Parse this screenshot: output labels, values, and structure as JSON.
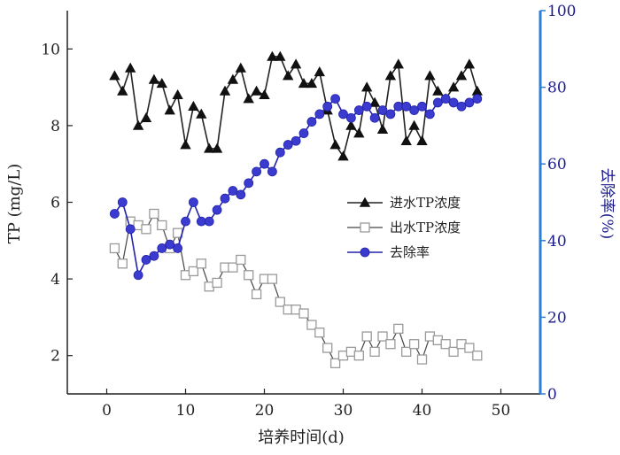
{
  "chart_data": {
    "type": "line",
    "xlabel": "培养时间(d)",
    "ylabel_left": "TP (mg/L)",
    "ylabel_right": "去除率(%)",
    "xlim": [
      -5,
      55
    ],
    "ylim_left": [
      1,
      11
    ],
    "ylim_right": [
      0,
      100
    ],
    "x_ticks": [
      0,
      10,
      20,
      30,
      40,
      50
    ],
    "y_ticks_left": [
      2,
      4,
      6,
      8,
      10
    ],
    "y_ticks_right": [
      0,
      20,
      40,
      60,
      80,
      100
    ],
    "grid": false,
    "legend_position": "center-right",
    "colors": {
      "axis_left": "#222222",
      "axis_right": "#2b7fd6",
      "influent": "#222222",
      "influent_marker": "#111111",
      "effluent": "#444444",
      "effluent_marker": "#9a9a9a",
      "removal": "#2222aa",
      "removal_marker": "#3b3bd0"
    },
    "x": [
      1,
      2,
      3,
      4,
      5,
      6,
      7,
      8,
      9,
      10,
      11,
      12,
      13,
      14,
      15,
      16,
      17,
      18,
      19,
      20,
      21,
      22,
      23,
      24,
      25,
      26,
      27,
      28,
      29,
      30,
      31,
      32,
      33,
      34,
      35,
      36,
      37,
      38,
      39,
      40,
      41,
      42,
      43,
      44,
      45,
      46,
      47
    ],
    "series": [
      {
        "name": "进水TP浓度",
        "axis": "left",
        "marker": "triangle",
        "values": [
          9.3,
          8.9,
          9.5,
          8.0,
          8.2,
          9.2,
          9.1,
          8.4,
          8.8,
          7.5,
          8.5,
          8.3,
          7.4,
          7.4,
          8.9,
          9.2,
          9.5,
          8.7,
          8.9,
          8.8,
          9.8,
          9.8,
          9.3,
          9.6,
          9.1,
          9.1,
          9.4,
          8.4,
          7.5,
          7.2,
          8.0,
          7.8,
          9.0,
          8.6,
          7.9,
          9.3,
          9.6,
          7.6,
          8.0,
          7.6,
          9.3,
          8.9,
          8.7,
          9.0,
          9.3,
          9.6,
          8.9
        ]
      },
      {
        "name": "出水TP浓度",
        "axis": "left",
        "marker": "square",
        "values": [
          4.8,
          4.4,
          5.5,
          5.4,
          5.3,
          5.7,
          5.4,
          4.8,
          5.2,
          4.1,
          4.2,
          4.4,
          3.8,
          3.9,
          4.3,
          4.3,
          4.5,
          4.1,
          3.6,
          4.0,
          4.0,
          3.4,
          3.2,
          3.2,
          3.1,
          2.8,
          2.6,
          2.2,
          1.8,
          2.0,
          2.1,
          2.0,
          2.5,
          2.1,
          2.5,
          2.3,
          2.7,
          2.1,
          2.3,
          1.9,
          2.5,
          2.4,
          2.3,
          2.1,
          2.3,
          2.2,
          2.0
        ]
      },
      {
        "name": "去除率",
        "axis": "right",
        "marker": "circle",
        "values": [
          47,
          50,
          43,
          31,
          35,
          36,
          38,
          39,
          38,
          45,
          50,
          45,
          45,
          48,
          51,
          53,
          52,
          55,
          58,
          60,
          58,
          63,
          65,
          66,
          68,
          71,
          73,
          75,
          77,
          73,
          72,
          74,
          75,
          72,
          74,
          73,
          75,
          75,
          74,
          75,
          73,
          76,
          77,
          76,
          75,
          76,
          77
        ]
      }
    ]
  }
}
